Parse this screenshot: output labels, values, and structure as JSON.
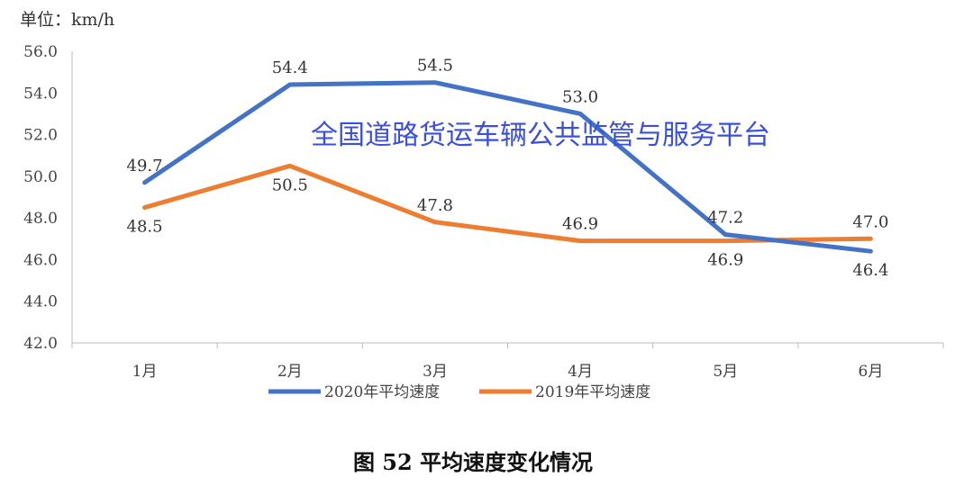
{
  "chart_data": {
    "type": "line",
    "unit_label": "单位：km/h",
    "categories": [
      "1月",
      "2月",
      "3月",
      "4月",
      "5月",
      "6月"
    ],
    "series": [
      {
        "name": "2020年平均速度",
        "color": "#4472C4",
        "values": [
          49.7,
          54.4,
          54.5,
          53.0,
          47.2,
          46.4
        ]
      },
      {
        "name": "2019年平均速度",
        "color": "#ED7D31",
        "values": [
          48.5,
          50.5,
          47.8,
          46.9,
          46.9,
          47.0
        ]
      }
    ],
    "ylim": [
      42.0,
      56.0
    ],
    "yticks": [
      "42.0",
      "44.0",
      "46.0",
      "48.0",
      "50.0",
      "52.0",
      "54.0",
      "56.0"
    ],
    "grid": false,
    "legend": "bottom",
    "caption": "图 52 平均速度变化情况",
    "watermark": "全国道路货运车辆公共监管与服务平台"
  }
}
